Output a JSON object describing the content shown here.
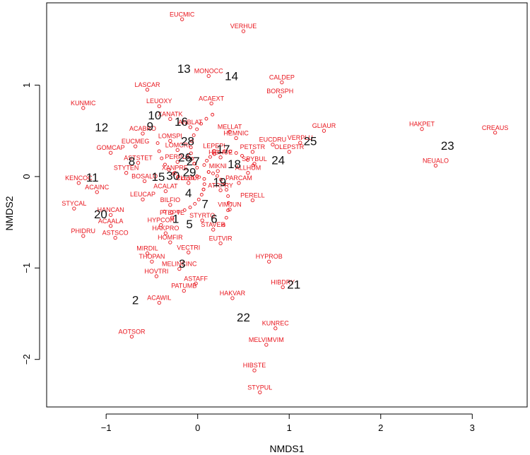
{
  "chart_data": {
    "type": "scatter",
    "xlabel": "NMDS1",
    "ylabel": "NMDS2",
    "xlim": [
      -1.65,
      3.6
    ],
    "ylim": [
      -2.52,
      1.9
    ],
    "x_ticks": [
      -1,
      0,
      1,
      2,
      3
    ],
    "y_ticks": [
      -2,
      -1,
      0,
      1
    ],
    "colors": {
      "species": "#e8141c",
      "sites": "#111111"
    },
    "species": [
      {
        "label": "EUCMIC",
        "x": -0.17,
        "y": 1.72
      },
      {
        "label": "VERHUE",
        "x": 0.5,
        "y": 1.59
      },
      {
        "label": "MONOCC",
        "x": 0.12,
        "y": 1.1
      },
      {
        "label": "LASCAR",
        "x": -0.55,
        "y": 0.95
      },
      {
        "label": "CALDEP",
        "x": 0.92,
        "y": 1.03
      },
      {
        "label": "BORSPH",
        "x": 0.9,
        "y": 0.88
      },
      {
        "label": "ACAEXT",
        "x": 0.15,
        "y": 0.8
      },
      {
        "label": "LEUOXY",
        "x": -0.42,
        "y": 0.77
      },
      {
        "label": "KUNMIC",
        "x": -1.25,
        "y": 0.75
      },
      {
        "label": "XANATK",
        "x": -0.3,
        "y": 0.63
      },
      {
        "label": "ANBLAT",
        "x": -0.08,
        "y": 0.54
      },
      {
        "label": "MELLAT",
        "x": 0.35,
        "y": 0.49
      },
      {
        "label": "HEMNIC",
        "x": 0.42,
        "y": 0.42
      },
      {
        "label": "ACABRO",
        "x": -0.6,
        "y": 0.47
      },
      {
        "label": "LOMSPI",
        "x": -0.3,
        "y": 0.39
      },
      {
        "label": "EUCMEG",
        "x": -0.68,
        "y": 0.33
      },
      {
        "label": "LOMCRI",
        "x": -0.22,
        "y": 0.29
      },
      {
        "label": "LEPEPI",
        "x": 0.18,
        "y": 0.28
      },
      {
        "label": "EUCDRU",
        "x": 0.82,
        "y": 0.35
      },
      {
        "label": "OLEPSTR",
        "x": 1.0,
        "y": 0.27
      },
      {
        "label": "VERPLU",
        "x": 1.12,
        "y": 0.37
      },
      {
        "label": "GLIAUR",
        "x": 1.38,
        "y": 0.5
      },
      {
        "label": "HAKPET",
        "x": 2.45,
        "y": 0.52
      },
      {
        "label": "CREAUS",
        "x": 3.25,
        "y": 0.48
      },
      {
        "label": "NEUALO",
        "x": 2.6,
        "y": 0.12
      },
      {
        "label": "GOMCAP",
        "x": -0.95,
        "y": 0.26
      },
      {
        "label": "PETSTR",
        "x": 0.6,
        "y": 0.27
      },
      {
        "label": "HIBHUE",
        "x": 0.25,
        "y": 0.21
      },
      {
        "label": "PERPLA",
        "x": -0.22,
        "y": 0.16
      },
      {
        "label": "ASTSTET",
        "x": -0.65,
        "y": 0.15
      },
      {
        "label": "SPYBUL",
        "x": 0.62,
        "y": 0.14
      },
      {
        "label": "ALLHUM",
        "x": 0.55,
        "y": 0.04
      },
      {
        "label": "STYTEN",
        "x": -0.78,
        "y": 0.04
      },
      {
        "label": "XANPRE",
        "x": -0.25,
        "y": 0.04
      },
      {
        "label": "MIKNI",
        "x": 0.22,
        "y": 0.06
      },
      {
        "label": "BOSALO",
        "x": -0.58,
        "y": -0.05
      },
      {
        "label": "CLEBUP",
        "x": -0.1,
        "y": -0.07
      },
      {
        "label": "PARCAM",
        "x": 0.45,
        "y": -0.07
      },
      {
        "label": "KENCOC",
        "x": -1.3,
        "y": -0.07
      },
      {
        "label": "ACAINC",
        "x": -1.1,
        "y": -0.17
      },
      {
        "label": "ACALAT",
        "x": -0.35,
        "y": -0.16
      },
      {
        "label": "ATRPRY",
        "x": 0.25,
        "y": -0.15
      },
      {
        "label": "PERELL",
        "x": 0.6,
        "y": -0.26
      },
      {
        "label": "LEUCAP",
        "x": -0.6,
        "y": -0.25
      },
      {
        "label": "BILFIO",
        "x": -0.3,
        "y": -0.31
      },
      {
        "label": "VIMJUN",
        "x": 0.35,
        "y": -0.36
      },
      {
        "label": "STYCAL",
        "x": -1.35,
        "y": -0.35
      },
      {
        "label": "HANCAN",
        "x": -0.95,
        "y": -0.42
      },
      {
        "label": "PTEPTE",
        "x": -0.28,
        "y": -0.45
      },
      {
        "label": "STYRTO",
        "x": 0.05,
        "y": -0.48
      },
      {
        "label": "HYPCOR",
        "x": -0.4,
        "y": -0.53
      },
      {
        "label": "ACAALA",
        "x": -0.95,
        "y": -0.54
      },
      {
        "label": "STAVER",
        "x": 0.17,
        "y": -0.58
      },
      {
        "label": "HAKPRO",
        "x": -0.35,
        "y": -0.62
      },
      {
        "label": "ASTSCO",
        "x": -0.9,
        "y": -0.67
      },
      {
        "label": "PHIDRU",
        "x": -1.25,
        "y": -0.65
      },
      {
        "label": "HOMFIR",
        "x": -0.3,
        "y": -0.72
      },
      {
        "label": "EUTVIR",
        "x": 0.25,
        "y": -0.73
      },
      {
        "label": "MIRDIL",
        "x": -0.55,
        "y": -0.84
      },
      {
        "label": "VECTRI",
        "x": -0.1,
        "y": -0.83
      },
      {
        "label": "THOPAN",
        "x": -0.5,
        "y": -0.93
      },
      {
        "label": "HYPROB",
        "x": 0.78,
        "y": -0.93
      },
      {
        "label": "MELINCINC",
        "x": -0.2,
        "y": -1.01
      },
      {
        "label": "HOVTRI",
        "x": -0.45,
        "y": -1.09
      },
      {
        "label": "ASTAFF",
        "x": -0.02,
        "y": -1.17
      },
      {
        "label": "HIBDRY",
        "x": 0.93,
        "y": -1.21
      },
      {
        "label": "PATUMB",
        "x": -0.15,
        "y": -1.25
      },
      {
        "label": "HAKVAR",
        "x": 0.38,
        "y": -1.33
      },
      {
        "label": "ACAWIL",
        "x": -0.42,
        "y": -1.38
      },
      {
        "label": "KUNREC",
        "x": 0.85,
        "y": -1.66
      },
      {
        "label": "AOTSOR",
        "x": -0.72,
        "y": -1.75
      },
      {
        "label": "MELVIMVIM",
        "x": 0.75,
        "y": -1.84
      },
      {
        "label": "HIBSTE",
        "x": 0.62,
        "y": -2.12
      },
      {
        "label": "STYPUL",
        "x": 0.68,
        "y": -2.36
      }
    ],
    "sites": [
      {
        "label": "1",
        "x": -0.24,
        "y": -0.46
      },
      {
        "label": "2",
        "x": -0.68,
        "y": -1.35
      },
      {
        "label": "3",
        "x": -0.17,
        "y": -0.95
      },
      {
        "label": "4",
        "x": -0.1,
        "y": -0.18
      },
      {
        "label": "5",
        "x": -0.09,
        "y": -0.52
      },
      {
        "label": "6",
        "x": 0.18,
        "y": -0.46
      },
      {
        "label": "7",
        "x": 0.08,
        "y": -0.3
      },
      {
        "label": "8",
        "x": -0.72,
        "y": 0.17
      },
      {
        "label": "9",
        "x": -0.52,
        "y": 0.55
      },
      {
        "label": "10",
        "x": -0.47,
        "y": 0.67
      },
      {
        "label": "11",
        "x": -1.15,
        "y": -0.01
      },
      {
        "label": "12",
        "x": -1.05,
        "y": 0.54
      },
      {
        "label": "13",
        "x": -0.15,
        "y": 1.18
      },
      {
        "label": "14",
        "x": 0.37,
        "y": 1.1
      },
      {
        "label": "15",
        "x": -0.43,
        "y": 0.0
      },
      {
        "label": "16",
        "x": -0.18,
        "y": 0.6
      },
      {
        "label": "17",
        "x": 0.28,
        "y": 0.3
      },
      {
        "label": "18",
        "x": 0.4,
        "y": 0.14
      },
      {
        "label": "19",
        "x": 0.24,
        "y": -0.06
      },
      {
        "label": "20",
        "x": -1.06,
        "y": -0.41
      },
      {
        "label": "21",
        "x": 1.05,
        "y": -1.18
      },
      {
        "label": "22",
        "x": 0.5,
        "y": -1.54
      },
      {
        "label": "23",
        "x": 2.73,
        "y": 0.34
      },
      {
        "label": "24",
        "x": 0.88,
        "y": 0.18
      },
      {
        "label": "25",
        "x": 1.23,
        "y": 0.39
      },
      {
        "label": "26",
        "x": -0.14,
        "y": 0.21
      },
      {
        "label": "27",
        "x": -0.05,
        "y": 0.17
      },
      {
        "label": "28",
        "x": -0.11,
        "y": 0.39
      },
      {
        "label": "29",
        "x": -0.09,
        "y": 0.05
      },
      {
        "label": "30",
        "x": -0.27,
        "y": 0.01
      }
    ]
  }
}
